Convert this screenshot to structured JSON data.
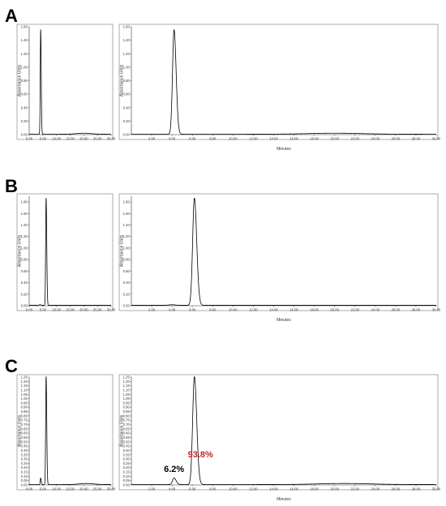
{
  "figure": {
    "panels": [
      "A",
      "B",
      "C"
    ]
  },
  "chart_data": [
    {
      "panel": "A",
      "view": "left",
      "type": "line",
      "title": "",
      "xlabel": "",
      "ylabel": "Absorbance Units",
      "xlim": [
        0,
        30
      ],
      "ylim": [
        0,
        1.6
      ],
      "xticks": [
        "0.00",
        "5.00",
        "10.00",
        "15.00",
        "20.00",
        "25.00",
        "30.00"
      ],
      "yticks": [
        "0.00",
        "0.20",
        "0.40",
        "0.60",
        "0.80",
        "1.00",
        "1.20",
        "1.40",
        "1.60"
      ],
      "peaks": [
        {
          "x": 4.2,
          "y": 1.55,
          "w": 0.15
        }
      ],
      "bumps": [
        {
          "x": 20,
          "y": 0.015,
          "w": 2.5
        }
      ],
      "annotations": []
    },
    {
      "panel": "A",
      "view": "right",
      "type": "line",
      "title": "",
      "xlabel": "Minutes",
      "ylabel": "Absorbance Units",
      "xlim": [
        0,
        30
      ],
      "ylim": [
        0,
        1.6
      ],
      "xticks": [
        "2.00",
        "4.00",
        "6.00",
        "8.00",
        "10.00",
        "12.00",
        "14.00",
        "16.00",
        "18.00",
        "20.00",
        "22.00",
        "24.00",
        "26.00",
        "28.00",
        "30.00"
      ],
      "yticks": [
        "0.00",
        "0.20",
        "0.40",
        "0.60",
        "0.80",
        "1.00",
        "1.20",
        "1.40",
        "1.60"
      ],
      "peaks": [
        {
          "x": 4.2,
          "y": 1.55,
          "w": 0.15
        }
      ],
      "bumps": [
        {
          "x": 20,
          "y": 0.015,
          "w": 2.5
        }
      ],
      "annotations": []
    },
    {
      "panel": "B",
      "view": "left",
      "type": "line",
      "title": "",
      "xlabel": "",
      "ylabel": "Absorbance Units",
      "xlim": [
        0,
        30
      ],
      "ylim": [
        0,
        1.9
      ],
      "xticks": [
        "0.00",
        "5.00",
        "10.00",
        "15.00",
        "20.00",
        "25.00",
        "30.00"
      ],
      "yticks": [
        "0.00",
        "0.20",
        "0.40",
        "0.60",
        "0.80",
        "1.00",
        "1.20",
        "1.40",
        "1.60",
        "1.80"
      ],
      "peaks": [
        {
          "x": 6.2,
          "y": 1.86,
          "w": 0.17
        }
      ],
      "bumps": [
        {
          "x": 4.0,
          "y": 0.01,
          "w": 0.3
        }
      ],
      "annotations": []
    },
    {
      "panel": "B",
      "view": "right",
      "type": "line",
      "title": "",
      "xlabel": "Minutes",
      "ylabel": "Absorbance Units",
      "xlim": [
        0,
        30
      ],
      "ylim": [
        0,
        1.9
      ],
      "xticks": [
        "2.00",
        "4.00",
        "6.00",
        "8.00",
        "10.00",
        "12.00",
        "14.00",
        "16.00",
        "18.00",
        "20.00",
        "22.00",
        "24.00",
        "26.00",
        "28.00",
        "30.00"
      ],
      "yticks": [
        "0.00",
        "0.20",
        "0.40",
        "0.60",
        "0.80",
        "1.00",
        "1.20",
        "1.40",
        "1.60",
        "1.80"
      ],
      "peaks": [
        {
          "x": 6.2,
          "y": 1.86,
          "w": 0.17
        }
      ],
      "bumps": [
        {
          "x": 4.0,
          "y": 0.01,
          "w": 0.3
        }
      ],
      "annotations": []
    },
    {
      "panel": "C",
      "view": "left",
      "type": "line",
      "title": "",
      "xlabel": "",
      "ylabel": "Absorbance Units",
      "xlim": [
        0,
        30
      ],
      "ylim": [
        0,
        1.25
      ],
      "xticks": [
        "0.00",
        "5.00",
        "10.00",
        "15.00",
        "20.00",
        "25.00",
        "30.00"
      ],
      "yticks": [
        "0.00",
        "0.05",
        "0.10",
        "0.15",
        "0.20",
        "0.25",
        "0.30",
        "0.35",
        "0.40",
        "0.45",
        "0.50",
        "0.55",
        "0.60",
        "0.65",
        "0.70",
        "0.75",
        "0.80",
        "0.85",
        "0.90",
        "0.95",
        "1.00",
        "1.05",
        "1.10",
        "1.15",
        "1.20",
        "1.25"
      ],
      "peaks": [
        {
          "x": 4.2,
          "y": 0.075,
          "w": 0.15
        },
        {
          "x": 6.2,
          "y": 1.25,
          "w": 0.17
        }
      ],
      "bumps": [
        {
          "x": 21,
          "y": 0.012,
          "w": 2.5
        }
      ],
      "annotations": []
    },
    {
      "panel": "C",
      "view": "right",
      "type": "line",
      "title": "",
      "xlabel": "Minutes",
      "ylabel": "Absorbance Units",
      "xlim": [
        0,
        30
      ],
      "ylim": [
        0,
        1.25
      ],
      "xticks": [
        "2.00",
        "4.00",
        "6.00",
        "8.00",
        "10.00",
        "12.00",
        "14.00",
        "16.00",
        "18.00",
        "20.00",
        "22.00",
        "24.00",
        "26.00",
        "28.00",
        "30.00"
      ],
      "yticks": [
        "0.00",
        "0.05",
        "0.10",
        "0.15",
        "0.20",
        "0.25",
        "0.30",
        "0.35",
        "0.40",
        "0.45",
        "0.50",
        "0.55",
        "0.60",
        "0.65",
        "0.70",
        "0.75",
        "0.80",
        "0.85",
        "0.90",
        "0.95",
        "1.00",
        "1.05",
        "1.10",
        "1.15",
        "1.20",
        "1.25"
      ],
      "peaks": [
        {
          "x": 4.2,
          "y": 0.075,
          "w": 0.15
        },
        {
          "x": 6.2,
          "y": 1.25,
          "w": 0.17
        }
      ],
      "bumps": [
        {
          "x": 21,
          "y": 0.012,
          "w": 2.5
        }
      ],
      "annotations": [
        {
          "text": "6.2%",
          "x": 4.2,
          "y": 0.15,
          "color": "#000000"
        },
        {
          "text": "93.8%",
          "x": 6.8,
          "y": 0.32,
          "color": "#c0282d"
        }
      ]
    }
  ]
}
